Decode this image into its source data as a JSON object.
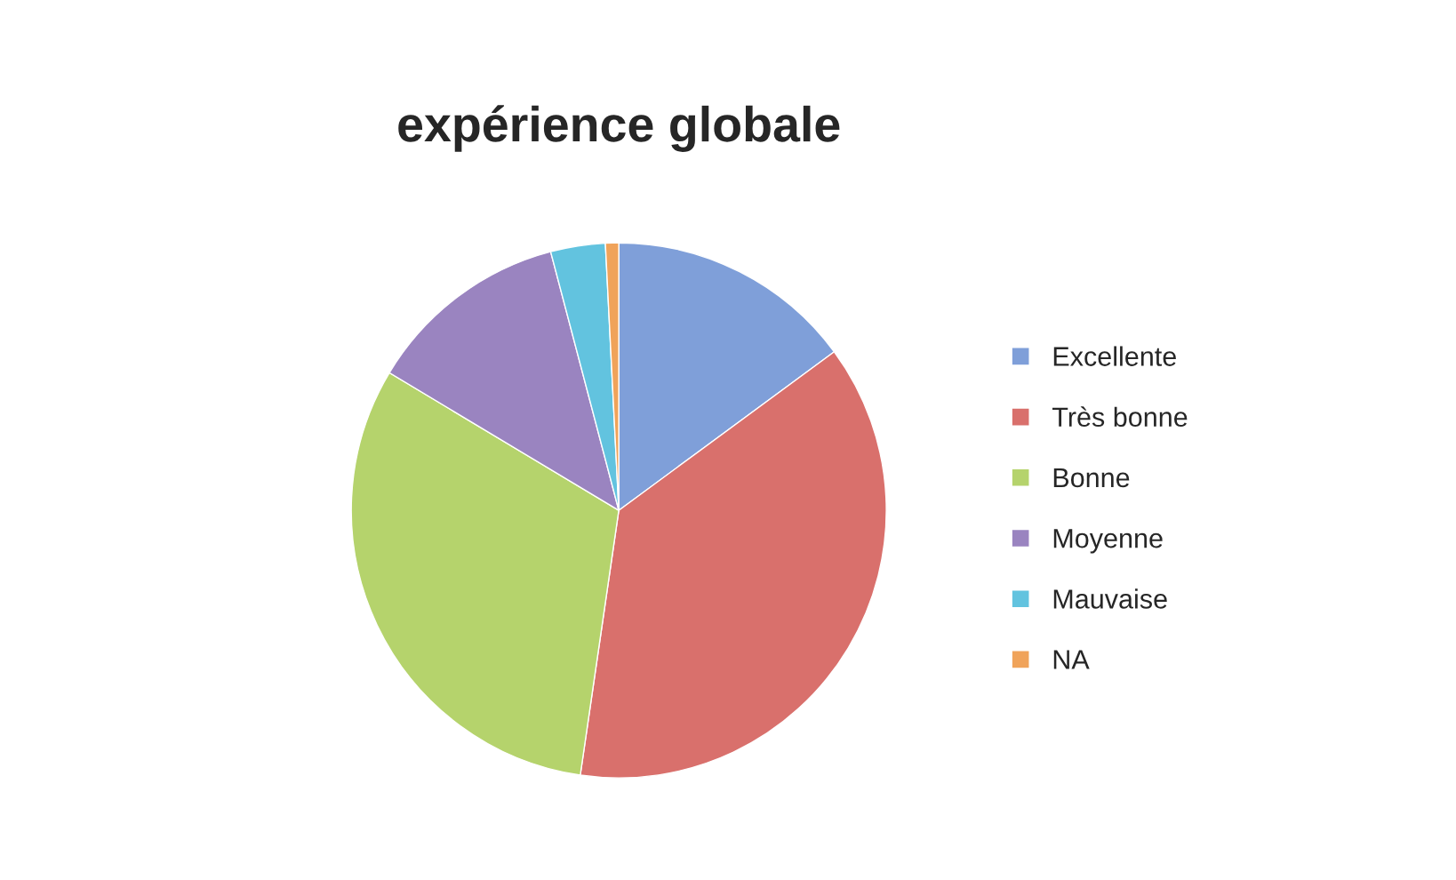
{
  "chart_data": {
    "type": "pie",
    "title": "expérience globale",
    "categories": [
      "Excellente",
      "Très bonne",
      "Bonne",
      "Moyenne",
      "Mauvaise",
      "NA"
    ],
    "values": [
      14.9,
      37.4,
      31.3,
      12.3,
      3.3,
      0.8
    ],
    "colors": [
      "#7f9fd9",
      "#d9706c",
      "#b5d36c",
      "#9a84c0",
      "#62c3df",
      "#f0a35a"
    ],
    "legend": "right"
  }
}
